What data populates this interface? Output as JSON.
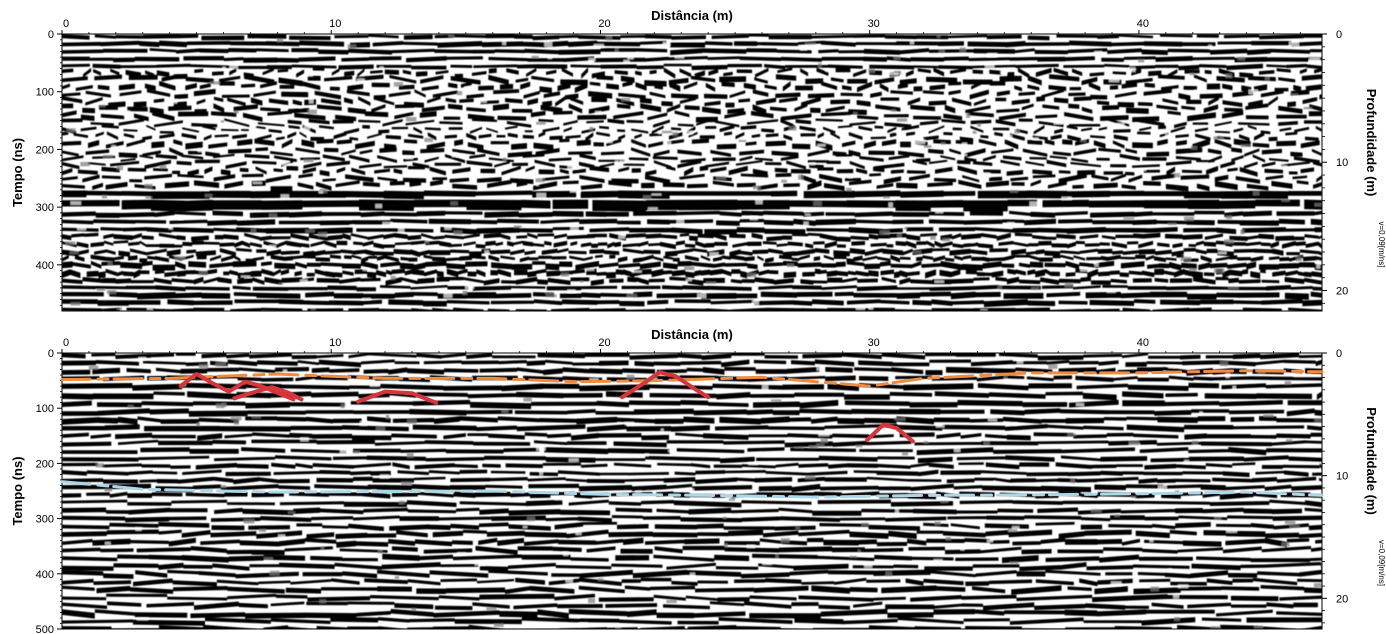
{
  "chart_data": [
    {
      "type": "heatmap",
      "xlabel": "Distância (m)",
      "ylabel": "Tempo (ns)",
      "y2label": "Profundidade (m)",
      "velocity": "v=0,09[m/ns]",
      "xlim": [
        0,
        46.8
      ],
      "ylim": [
        0,
        480
      ],
      "y2lim": [
        0,
        21.6
      ],
      "x_ticks": [
        0,
        10,
        20,
        30,
        40
      ],
      "y_ticks": [
        0,
        100,
        200,
        300,
        400
      ],
      "y2_ticks": [
        0,
        10,
        20
      ],
      "grid": false,
      "interpretation_lines": []
    },
    {
      "type": "heatmap",
      "xlabel": "Distância (m)",
      "ylabel": "Tempo (ns)",
      "y2label": "Profundidade (m)",
      "velocity": "v=0,09[m/ns]",
      "xlim": [
        0,
        46.8
      ],
      "ylim": [
        0,
        500
      ],
      "y2lim": [
        0,
        22.5
      ],
      "x_ticks": [
        0,
        10,
        20,
        30,
        40
      ],
      "y_ticks": [
        0,
        100,
        200,
        300,
        400,
        500
      ],
      "y2_ticks": [
        0,
        10,
        20
      ],
      "grid": false,
      "interpretation_lines": [
        {
          "color": "#f08a3c",
          "dashed": true,
          "points": [
            [
              0,
              48
            ],
            [
              4,
              46
            ],
            [
              8,
              38
            ],
            [
              12,
              46
            ],
            [
              16,
              46
            ],
            [
              19,
              52
            ],
            [
              22,
              50
            ],
            [
              26,
              44
            ],
            [
              29,
              56
            ],
            [
              30,
              60
            ],
            [
              32,
              46
            ],
            [
              36,
              36
            ],
            [
              40,
              36
            ],
            [
              44,
              32
            ],
            [
              46.8,
              34
            ]
          ]
        },
        {
          "color": "#a9d8ea",
          "dashed": true,
          "points": [
            [
              0,
              233
            ],
            [
              3,
              247
            ],
            [
              8,
              252
            ],
            [
              12,
              251
            ],
            [
              16,
              250
            ],
            [
              20,
              256
            ],
            [
              24,
              258
            ],
            [
              28,
              261
            ],
            [
              32,
              258
            ],
            [
              36,
              257
            ],
            [
              40,
              255
            ],
            [
              44,
              252
            ],
            [
              46.8,
              258
            ]
          ]
        },
        {
          "color": "#d9343a",
          "dashed": false,
          "points": [
            [
              4.4,
              60
            ],
            [
              5,
              38
            ],
            [
              5.6,
              55
            ],
            [
              6.2,
              70
            ],
            [
              6.8,
              52
            ],
            [
              7.4,
              60
            ],
            [
              8.6,
              84
            ]
          ]
        },
        {
          "color": "#d9343a",
          "dashed": false,
          "points": [
            [
              6.4,
              82
            ],
            [
              7.2,
              70
            ],
            [
              7.8,
              62
            ],
            [
              8.4,
              72
            ],
            [
              8.9,
              84
            ]
          ]
        },
        {
          "color": "#d9343a",
          "dashed": false,
          "points": [
            [
              11,
              88
            ],
            [
              12,
              70
            ],
            [
              13,
              73
            ],
            [
              13.9,
              90
            ]
          ]
        },
        {
          "color": "#d9343a",
          "dashed": false,
          "points": [
            [
              20.8,
              80
            ],
            [
              21.6,
              55
            ],
            [
              22.2,
              35
            ],
            [
              22.8,
              42
            ],
            [
              23.5,
              65
            ],
            [
              24,
              80
            ]
          ]
        },
        {
          "color": "#d9343a",
          "dashed": false,
          "points": [
            [
              29.9,
              158
            ],
            [
              30.5,
              130
            ],
            [
              31,
              136
            ],
            [
              31.6,
              160
            ]
          ]
        }
      ]
    }
  ]
}
